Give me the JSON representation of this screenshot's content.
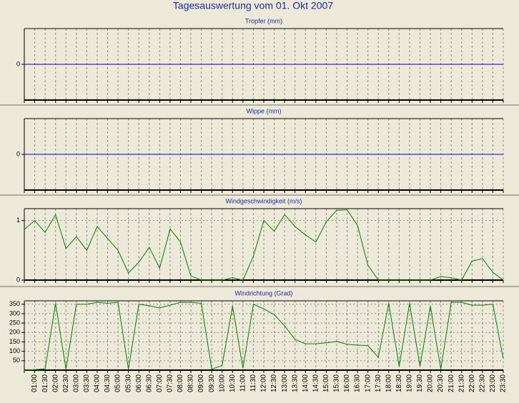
{
  "title": "Tagesauswertung vom 01. Okt 2007",
  "chart_data": [
    {
      "type": "line",
      "title": "Tropfer (mm)",
      "ylim": [
        -1,
        1
      ],
      "yticks": [
        0
      ],
      "grid": false,
      "series": [
        {
          "color": "#0000c8",
          "values": [
            0,
            0,
            0,
            0,
            0,
            0,
            0,
            0,
            0,
            0,
            0,
            0,
            0,
            0,
            0,
            0,
            0,
            0,
            0,
            0,
            0,
            0,
            0,
            0,
            0,
            0,
            0,
            0,
            0,
            0,
            0,
            0,
            0,
            0,
            0,
            0,
            0,
            0,
            0,
            0,
            0,
            0,
            0,
            0,
            0,
            0,
            0
          ]
        }
      ]
    },
    {
      "type": "line",
      "title": "Wippe (mm)",
      "ylim": [
        -1,
        1
      ],
      "yticks": [
        0
      ],
      "grid": false,
      "series": [
        {
          "color": "#0000c8",
          "values": [
            0,
            0,
            0,
            0,
            0,
            0,
            0,
            0,
            0,
            0,
            0,
            0,
            0,
            0,
            0,
            0,
            0,
            0,
            0,
            0,
            0,
            0,
            0,
            0,
            0,
            0,
            0,
            0,
            0,
            0,
            0,
            0,
            0,
            0,
            0,
            0,
            0,
            0,
            0,
            0,
            0,
            0,
            0,
            0,
            0,
            0,
            0
          ]
        }
      ]
    },
    {
      "type": "line",
      "title": "Windgeschwindigkeit (m/s)",
      "ylim": [
        0,
        1.2
      ],
      "yticks": [
        0,
        1
      ],
      "grid": true,
      "series": [
        {
          "color": "#008000",
          "values": [
            0.85,
            1.0,
            0.8,
            1.1,
            0.53,
            0.73,
            0.5,
            0.9,
            0.7,
            0.5,
            0.12,
            0.3,
            0.55,
            0.2,
            0.86,
            0.64,
            0.07,
            0,
            0,
            0,
            0.04,
            0,
            0.4,
            1.0,
            0.82,
            1.1,
            0.9,
            0.76,
            0.64,
            0.98,
            1.17,
            1.18,
            0.92,
            0.25,
            0,
            0,
            0,
            0,
            0,
            0,
            0.06,
            0.04,
            0,
            0.32,
            0.36,
            0.13,
            0
          ]
        }
      ]
    },
    {
      "type": "line",
      "title": "Windrichtung (Grad)",
      "ylim": [
        0,
        368
      ],
      "yticks": [
        50,
        100,
        150,
        200,
        250,
        300,
        350
      ],
      "grid": true,
      "categories": [
        null,
        "01:00",
        "01:30",
        "02:00",
        "02:30",
        "03:00",
        "03:30",
        "04:00",
        "04:30",
        "05:00",
        "05:30",
        "06:00",
        "06:30",
        "07:00",
        "07:30",
        "08:00",
        "08:30",
        "09:00",
        "09:30",
        "10:00",
        "10:30",
        "11:00",
        "11:30",
        "12:00",
        "12:30",
        "13:00",
        "13:30",
        "14:00",
        "14:30",
        "15:00",
        "15:30",
        "16:00",
        "16:30",
        "17:00",
        "17:30",
        "18:00",
        "18:30",
        "19:00",
        "19:30",
        "20:00",
        "20:30",
        "21:00",
        "21:30",
        "22:00",
        "22:30",
        "23:00",
        "23:30"
      ],
      "series": [
        {
          "color": "#008000",
          "values": [
            0,
            3,
            7,
            355,
            5,
            350,
            350,
            360,
            355,
            360,
            5,
            350,
            342,
            330,
            345,
            360,
            360,
            355,
            5,
            25,
            340,
            10,
            350,
            325,
            295,
            235,
            163,
            140,
            140,
            145,
            152,
            137,
            133,
            130,
            68,
            355,
            20,
            355,
            20,
            340,
            5,
            360,
            360,
            345,
            345,
            350,
            60
          ]
        }
      ]
    }
  ]
}
